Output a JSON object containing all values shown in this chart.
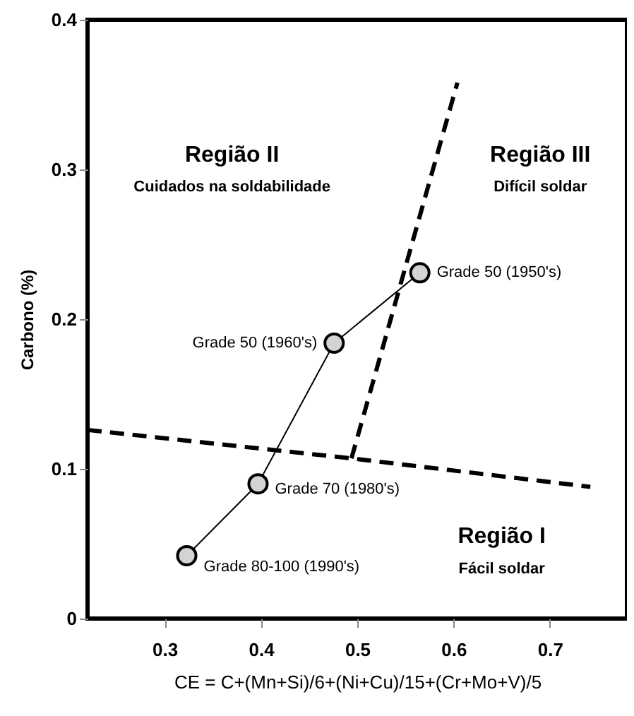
{
  "chart_data": {
    "type": "scatter",
    "xlabel": "CE = C+(Mn+Si)/6+(Ni+Cu)/15+(Cr+Mo+V)/5",
    "ylabel": "Carbono (%)",
    "xlim": [
      0.22,
      0.78
    ],
    "ylim": [
      0,
      0.4
    ],
    "xticks": [
      0.3,
      0.4,
      0.5,
      0.6,
      0.7
    ],
    "yticks": [
      0,
      0.1,
      0.2,
      0.3,
      0.4
    ],
    "grid": false,
    "series": [
      {
        "type": "line",
        "line_style": "dashed",
        "color": "#000000",
        "x": [
          0.22,
          0.494,
          0.742
        ],
        "values": [
          0.126,
          0.107,
          0.088
        ]
      },
      {
        "type": "line",
        "line_style": "dashed",
        "color": "#000000",
        "x": [
          0.494,
          0.604
        ],
        "values": [
          0.107,
          0.358
        ]
      },
      {
        "type": "line",
        "line_style": "solid",
        "color": "#000000",
        "x": [
          0.565,
          0.476,
          0.397,
          0.323
        ],
        "values": [
          0.231,
          0.184,
          0.09,
          0.042
        ]
      },
      {
        "marker": "circle",
        "color": "#d3d3d3",
        "x": [
          0.565,
          0.476,
          0.397,
          0.323
        ],
        "values": [
          0.231,
          0.184,
          0.09,
          0.042
        ]
      }
    ],
    "annotations": [
      {
        "text": "Grade 50 (1950's)",
        "x": 0.565,
        "y": 0.231
      },
      {
        "text": "Grade 50 (1960's)",
        "x": 0.476,
        "y": 0.184
      },
      {
        "text": "Grade 70 (1980's)",
        "x": 0.397,
        "y": 0.09
      },
      {
        "text": "Grade 80-100 (1990's)",
        "x": 0.323,
        "y": 0.042
      },
      "Região II",
      "Cuidados na soldabilidade",
      "Região III",
      "Difícil soldar",
      "Região I",
      "Fácil soldar"
    ]
  }
}
